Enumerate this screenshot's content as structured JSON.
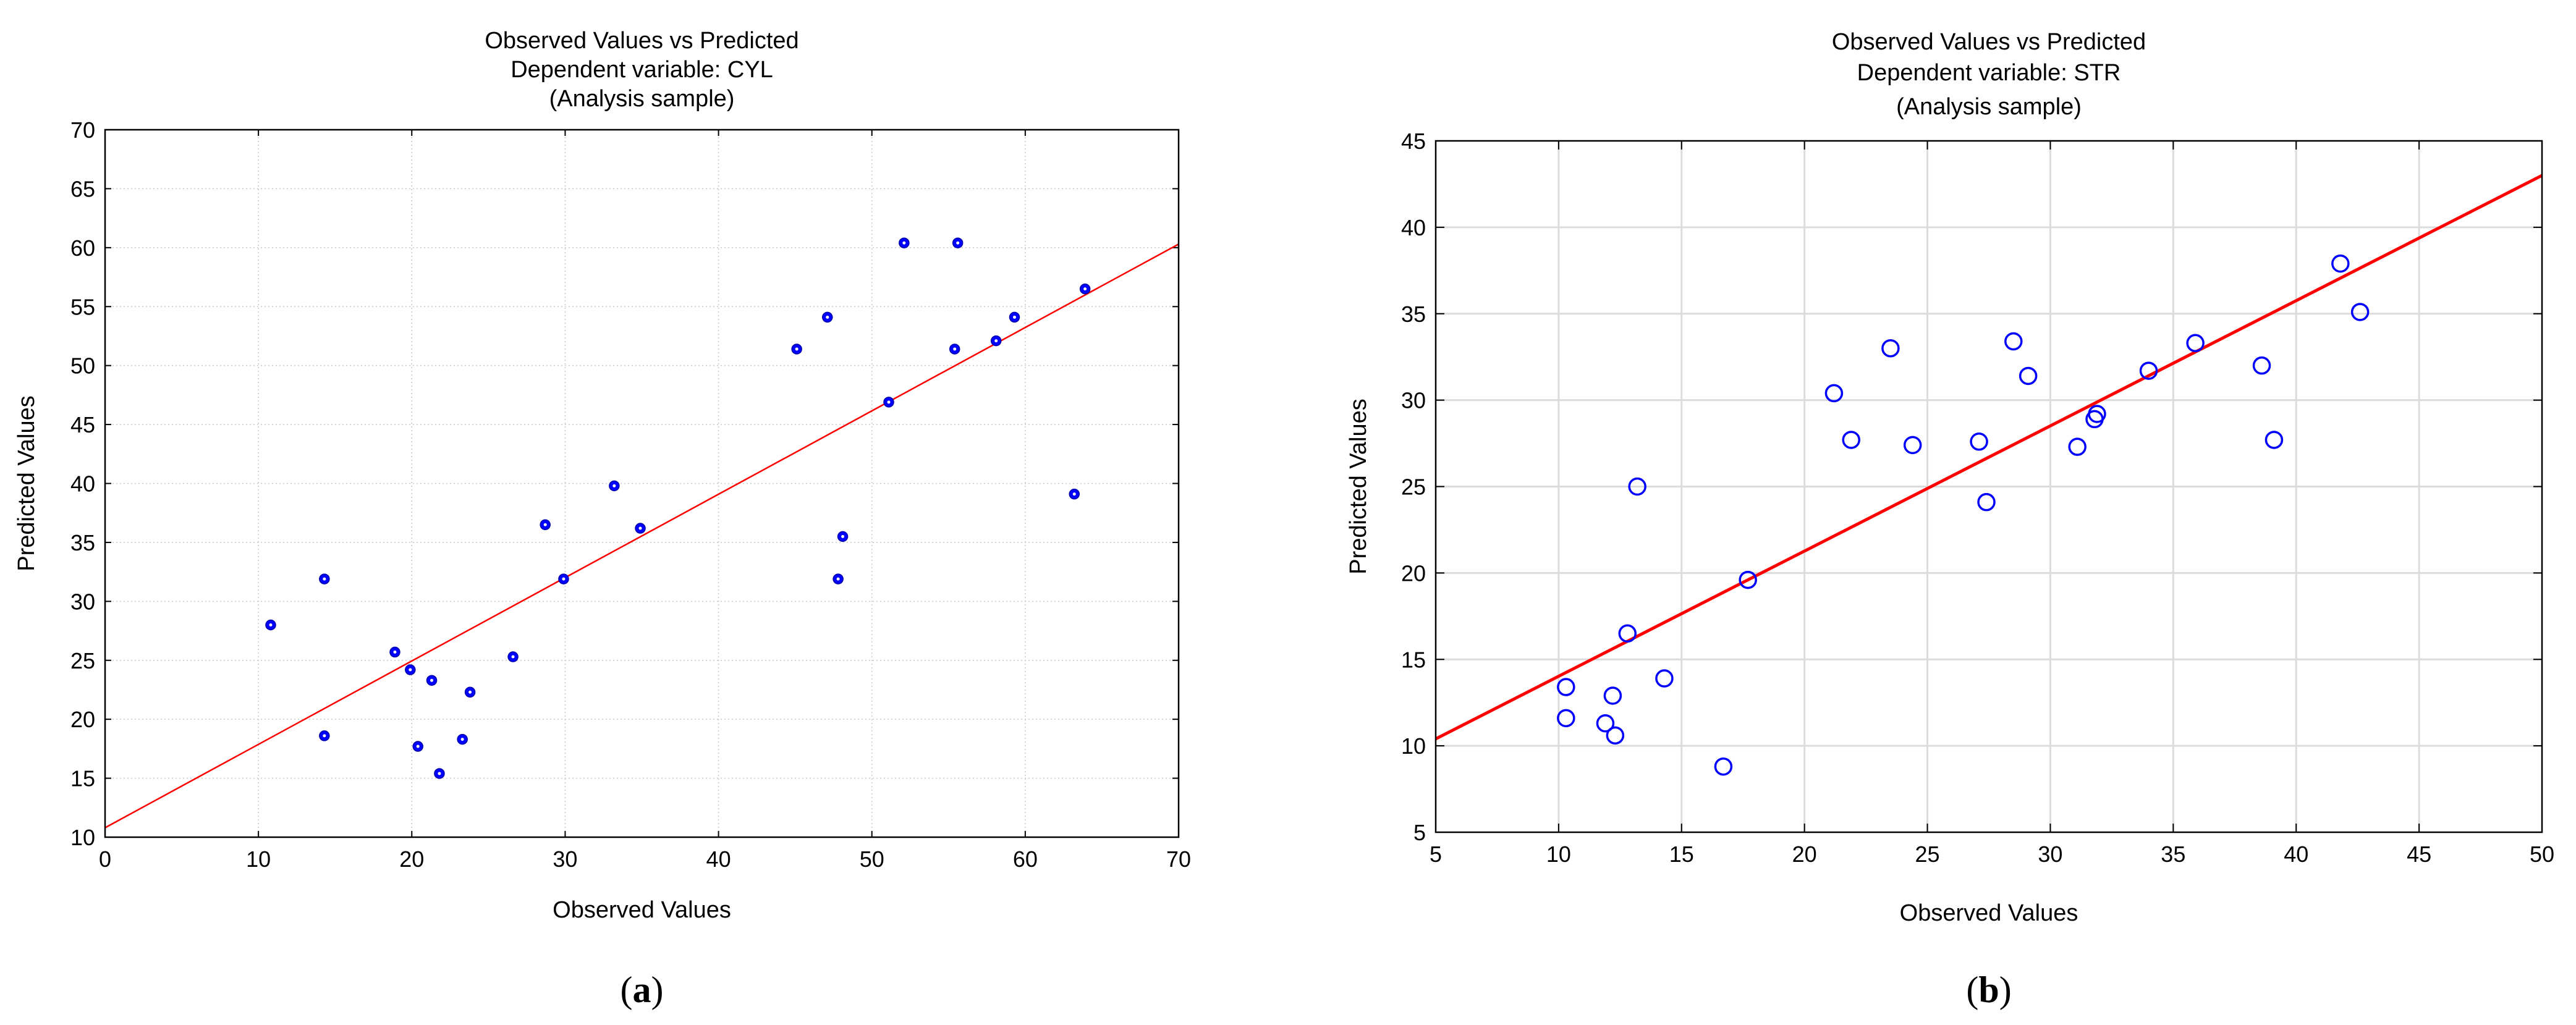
{
  "chart_data": [
    {
      "type": "scatter",
      "panel_label": "a",
      "title": [
        "Observed Values vs Predicted",
        "Dependent variable: CYL",
        "(Analysis sample)"
      ],
      "xlabel": "Observed Values",
      "ylabel": "Predicted Values",
      "xlim": [
        0,
        70
      ],
      "ylim": [
        10,
        70
      ],
      "xticks": [
        0,
        10,
        20,
        30,
        40,
        50,
        60,
        70
      ],
      "yticks": [
        10,
        15,
        20,
        25,
        30,
        35,
        40,
        45,
        50,
        55,
        60,
        65,
        70
      ],
      "grid": true,
      "marker": "filled-circle",
      "point_color": "#0000ff",
      "line_color": "#ff0000",
      "fit_line": [
        [
          0,
          10.8
        ],
        [
          70,
          60.3
        ]
      ],
      "points": [
        [
          10.8,
          28.0
        ],
        [
          14.3,
          31.9
        ],
        [
          14.3,
          18.6
        ],
        [
          18.9,
          25.7
        ],
        [
          19.9,
          24.2
        ],
        [
          20.4,
          17.7
        ],
        [
          21.3,
          23.3
        ],
        [
          21.8,
          15.4
        ],
        [
          23.3,
          18.3
        ],
        [
          23.8,
          22.3
        ],
        [
          26.6,
          25.3
        ],
        [
          28.7,
          36.5
        ],
        [
          29.9,
          31.9
        ],
        [
          33.2,
          39.8
        ],
        [
          34.9,
          36.2
        ],
        [
          45.1,
          51.4
        ],
        [
          47.1,
          54.1
        ],
        [
          47.8,
          31.9
        ],
        [
          48.1,
          35.5
        ],
        [
          51.1,
          46.9
        ],
        [
          52.1,
          60.4
        ],
        [
          55.4,
          51.4
        ],
        [
          55.6,
          60.4
        ],
        [
          58.1,
          52.1
        ],
        [
          59.3,
          54.1
        ],
        [
          63.2,
          39.1
        ],
        [
          63.9,
          56.5
        ]
      ]
    },
    {
      "type": "scatter",
      "panel_label": "b",
      "title": [
        "Observed Values vs Predicted",
        "Dependent variable: STR",
        "(Analysis sample)"
      ],
      "xlabel": "Observed Values",
      "ylabel": "Predicted Values",
      "xlim": [
        5,
        50
      ],
      "ylim": [
        5,
        45
      ],
      "xticks": [
        5,
        10,
        15,
        20,
        25,
        30,
        35,
        40,
        45,
        50
      ],
      "yticks": [
        5,
        10,
        15,
        20,
        25,
        30,
        35,
        40,
        45
      ],
      "grid": true,
      "marker": "open-circle",
      "point_color": "#0000ff",
      "line_color": "#ff0000",
      "fit_line": [
        [
          5,
          10.4
        ],
        [
          50,
          43.0
        ]
      ],
      "points": [
        [
          10.3,
          11.6
        ],
        [
          10.3,
          13.4
        ],
        [
          11.9,
          11.3
        ],
        [
          12.2,
          12.9
        ],
        [
          12.3,
          10.6
        ],
        [
          12.8,
          16.5
        ],
        [
          13.2,
          25.0
        ],
        [
          14.3,
          13.9
        ],
        [
          16.7,
          8.8
        ],
        [
          17.7,
          19.6
        ],
        [
          21.2,
          30.4
        ],
        [
          21.9,
          27.7
        ],
        [
          23.5,
          33.0
        ],
        [
          24.4,
          27.4
        ],
        [
          27.1,
          27.6
        ],
        [
          27.4,
          24.1
        ],
        [
          28.5,
          33.4
        ],
        [
          29.1,
          31.4
        ],
        [
          31.1,
          27.3
        ],
        [
          31.8,
          28.9
        ],
        [
          31.9,
          29.2
        ],
        [
          34.0,
          31.7
        ],
        [
          35.9,
          33.3
        ],
        [
          38.6,
          32.0
        ],
        [
          39.1,
          27.7
        ],
        [
          41.8,
          37.9
        ],
        [
          42.6,
          35.1
        ]
      ]
    }
  ]
}
